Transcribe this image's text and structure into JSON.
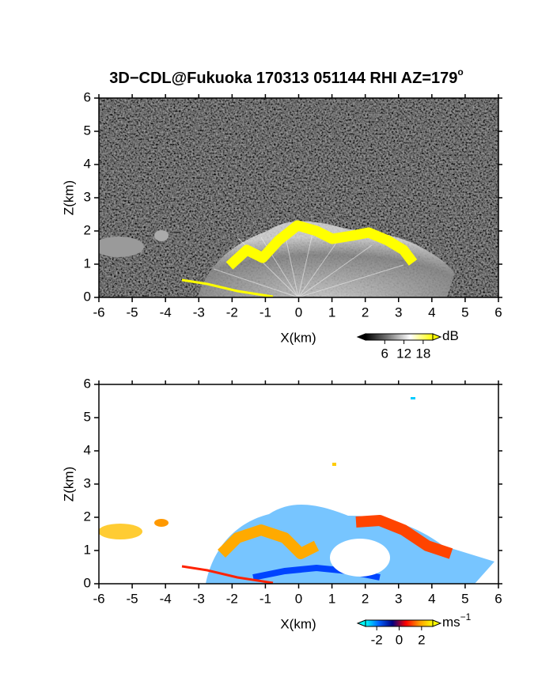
{
  "chart_data": [
    {
      "type": "heatmap",
      "title": "3D−CDL@Fukuoka 170313 051144 RHI AZ=179",
      "title_sup": "o",
      "xlabel": "X(km)",
      "ylabel": "Z(km)",
      "xlim": [
        -6,
        6
      ],
      "ylim": [
        0,
        6
      ],
      "xticks": [
        -6,
        -5,
        -4,
        -3,
        -2,
        -1,
        0,
        1,
        2,
        3,
        4,
        5,
        6
      ],
      "yticks": [
        0,
        1,
        2,
        3,
        4,
        5,
        6
      ],
      "colorbar": {
        "clim": [
          0,
          21
        ],
        "ticks": [
          6,
          12,
          18
        ],
        "label": "dB",
        "colors": [
          "#000000",
          "#777777",
          "#ffffff",
          "#ffff00"
        ]
      }
    },
    {
      "type": "heatmap",
      "xlabel": "X(km)",
      "ylabel": "Z(km)",
      "xlim": [
        -6,
        6
      ],
      "ylim": [
        0,
        6
      ],
      "xticks": [
        -6,
        -5,
        -4,
        -3,
        -2,
        -1,
        0,
        1,
        2,
        3,
        4,
        5,
        6
      ],
      "yticks": [
        0,
        1,
        2,
        3,
        4,
        5,
        6
      ],
      "colorbar": {
        "clim": [
          -3,
          3
        ],
        "ticks": [
          -2,
          0,
          2
        ],
        "label": "ms",
        "label_sup": "−1",
        "colors": [
          "#00ffff",
          "#0060ff",
          "#000080",
          "#ff0000",
          "#ff9900",
          "#ffff00"
        ]
      }
    }
  ]
}
